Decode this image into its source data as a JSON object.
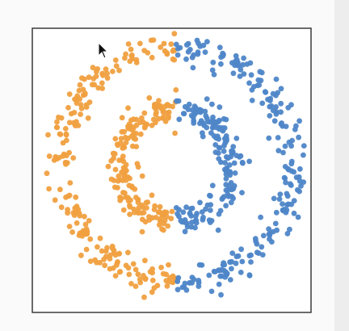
{
  "chart_data": {
    "type": "scatter",
    "title": "",
    "xlabel": "",
    "ylabel": "",
    "xlim": [
      -1.15,
      1.15
    ],
    "ylim": [
      -1.15,
      1.15
    ],
    "axes_visible": false,
    "grid": false,
    "legend": "none",
    "series": [
      {
        "color": "#f0a040",
        "rings": [
          {
            "radius": 1.0,
            "noise": 0.06,
            "points": 210,
            "angle_range_deg": [
              90,
              270
            ]
          },
          {
            "radius": 0.48,
            "noise": 0.06,
            "points": 170,
            "angle_range_deg": [
              90,
              270
            ]
          }
        ]
      },
      {
        "color": "#4e86c8",
        "rings": [
          {
            "radius": 1.0,
            "noise": 0.06,
            "points": 210,
            "angle_range_deg": [
              -90,
              90
            ]
          },
          {
            "radius": 0.48,
            "noise": 0.06,
            "points": 170,
            "angle_range_deg": [
              -90,
              90
            ]
          }
        ]
      }
    ]
  },
  "colors": {
    "frame": "#3a3a3a",
    "plot_background": "#ffffff",
    "cursor": "#111111"
  },
  "icons": {
    "cursor": "mouse-pointer-icon"
  }
}
